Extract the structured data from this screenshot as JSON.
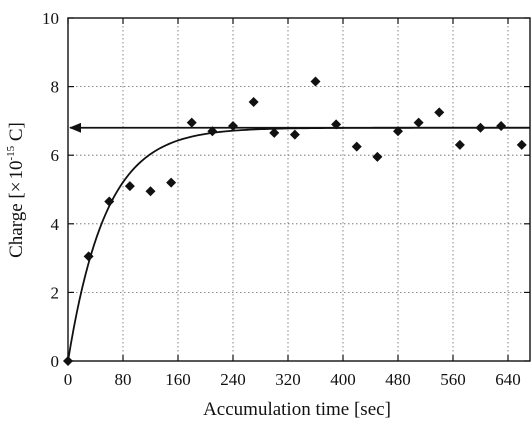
{
  "chart_data": {
    "type": "scatter",
    "title": "",
    "xlabel": "Accumulation time [sec]",
    "ylabel": {
      "prefix": "Charge [",
      "times": "×",
      "base": "10",
      "exponent": "-15",
      "unit": " C]"
    },
    "xlim": [
      0,
      672
    ],
    "ylim": [
      0,
      10
    ],
    "x_ticks": [
      0,
      80,
      160,
      240,
      320,
      400,
      480,
      560,
      640
    ],
    "y_ticks": [
      0,
      2,
      4,
      6,
      8,
      10
    ],
    "x_tick_labels": [
      "0",
      "80",
      "160",
      "240",
      "320",
      "400",
      "480",
      "560",
      "640"
    ],
    "y_tick_labels": [
      "0",
      "2",
      "4",
      "6",
      "8",
      "10"
    ],
    "grid": "dotted",
    "legend": "none",
    "series": [
      {
        "kind": "points",
        "marker": "diamond",
        "color": "#111111",
        "points": [
          [
            0,
            0.0
          ],
          [
            30,
            3.05
          ],
          [
            60,
            4.65
          ],
          [
            90,
            5.1
          ],
          [
            120,
            4.95
          ],
          [
            150,
            5.2
          ],
          [
            180,
            6.95
          ],
          [
            210,
            6.7
          ],
          [
            240,
            6.85
          ],
          [
            270,
            7.55
          ],
          [
            300,
            6.65
          ],
          [
            330,
            6.6
          ],
          [
            360,
            8.15
          ],
          [
            390,
            6.9
          ],
          [
            420,
            6.25
          ],
          [
            450,
            5.95
          ],
          [
            480,
            6.7
          ],
          [
            510,
            6.95
          ],
          [
            540,
            7.25
          ],
          [
            570,
            6.3
          ],
          [
            600,
            6.8
          ],
          [
            630,
            6.85
          ],
          [
            660,
            6.3
          ]
        ]
      },
      {
        "kind": "fit_curve",
        "color": "#111111",
        "model": "saturation",
        "saturation": 6.8,
        "time_constant": 55,
        "x_range": [
          0,
          672
        ]
      },
      {
        "kind": "arrow_line",
        "color": "#111111",
        "y": 6.8,
        "x_from": 672,
        "x_to": 3,
        "direction": "left"
      }
    ]
  }
}
